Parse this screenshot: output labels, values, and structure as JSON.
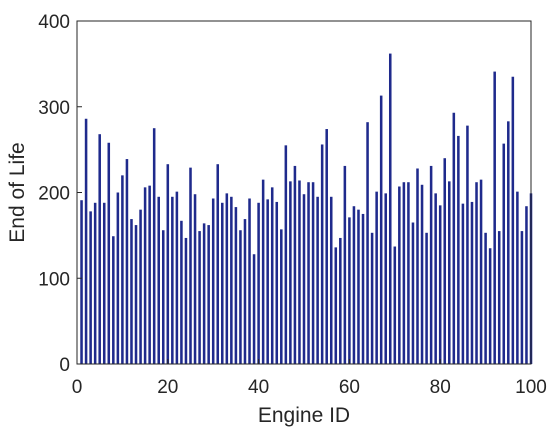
{
  "chart_data": {
    "type": "bar",
    "xlabel": "Engine ID",
    "ylabel": "End of Life",
    "xlim": [
      0,
      100
    ],
    "ylim": [
      0,
      400
    ],
    "x_ticks": [
      0,
      20,
      40,
      60,
      80,
      100
    ],
    "y_ticks": [
      0,
      100,
      200,
      300,
      400
    ],
    "grid": false,
    "bar_color": "#1f2a8c",
    "x": [
      1,
      2,
      3,
      4,
      5,
      6,
      7,
      8,
      9,
      10,
      11,
      12,
      13,
      14,
      15,
      16,
      17,
      18,
      19,
      20,
      21,
      22,
      23,
      24,
      25,
      26,
      27,
      28,
      29,
      30,
      31,
      32,
      33,
      34,
      35,
      36,
      37,
      38,
      39,
      40,
      41,
      42,
      43,
      44,
      45,
      46,
      47,
      48,
      49,
      50,
      51,
      52,
      53,
      54,
      55,
      56,
      57,
      58,
      59,
      60,
      61,
      62,
      63,
      64,
      65,
      66,
      67,
      68,
      69,
      70,
      71,
      72,
      73,
      74,
      75,
      76,
      77,
      78,
      79,
      80,
      81,
      82,
      83,
      84,
      85,
      86,
      87,
      88,
      89,
      90,
      91,
      92,
      93,
      94,
      95,
      96,
      97,
      98,
      99,
      100
    ],
    "values": [
      191,
      286,
      178,
      188,
      268,
      188,
      258,
      149,
      200,
      220,
      239,
      169,
      162,
      180,
      206,
      208,
      275,
      195,
      156,
      233,
      195,
      201,
      167,
      147,
      229,
      198,
      155,
      164,
      162,
      193,
      233,
      188,
      199,
      195,
      183,
      156,
      169,
      193,
      128,
      188,
      215,
      192,
      206,
      189,
      157,
      255,
      213,
      231,
      214,
      198,
      212,
      212,
      195,
      256,
      274,
      195,
      136,
      147,
      231,
      171,
      184,
      180,
      175,
      282,
      153,
      201,
      313,
      199,
      362,
      137,
      207,
      212,
      212,
      165,
      228,
      209,
      153,
      231,
      199,
      185,
      240,
      213,
      293,
      266,
      187,
      278,
      189,
      212,
      215,
      153,
      135,
      341,
      155,
      257,
      283,
      335,
      201,
      155,
      184,
      199
    ]
  }
}
